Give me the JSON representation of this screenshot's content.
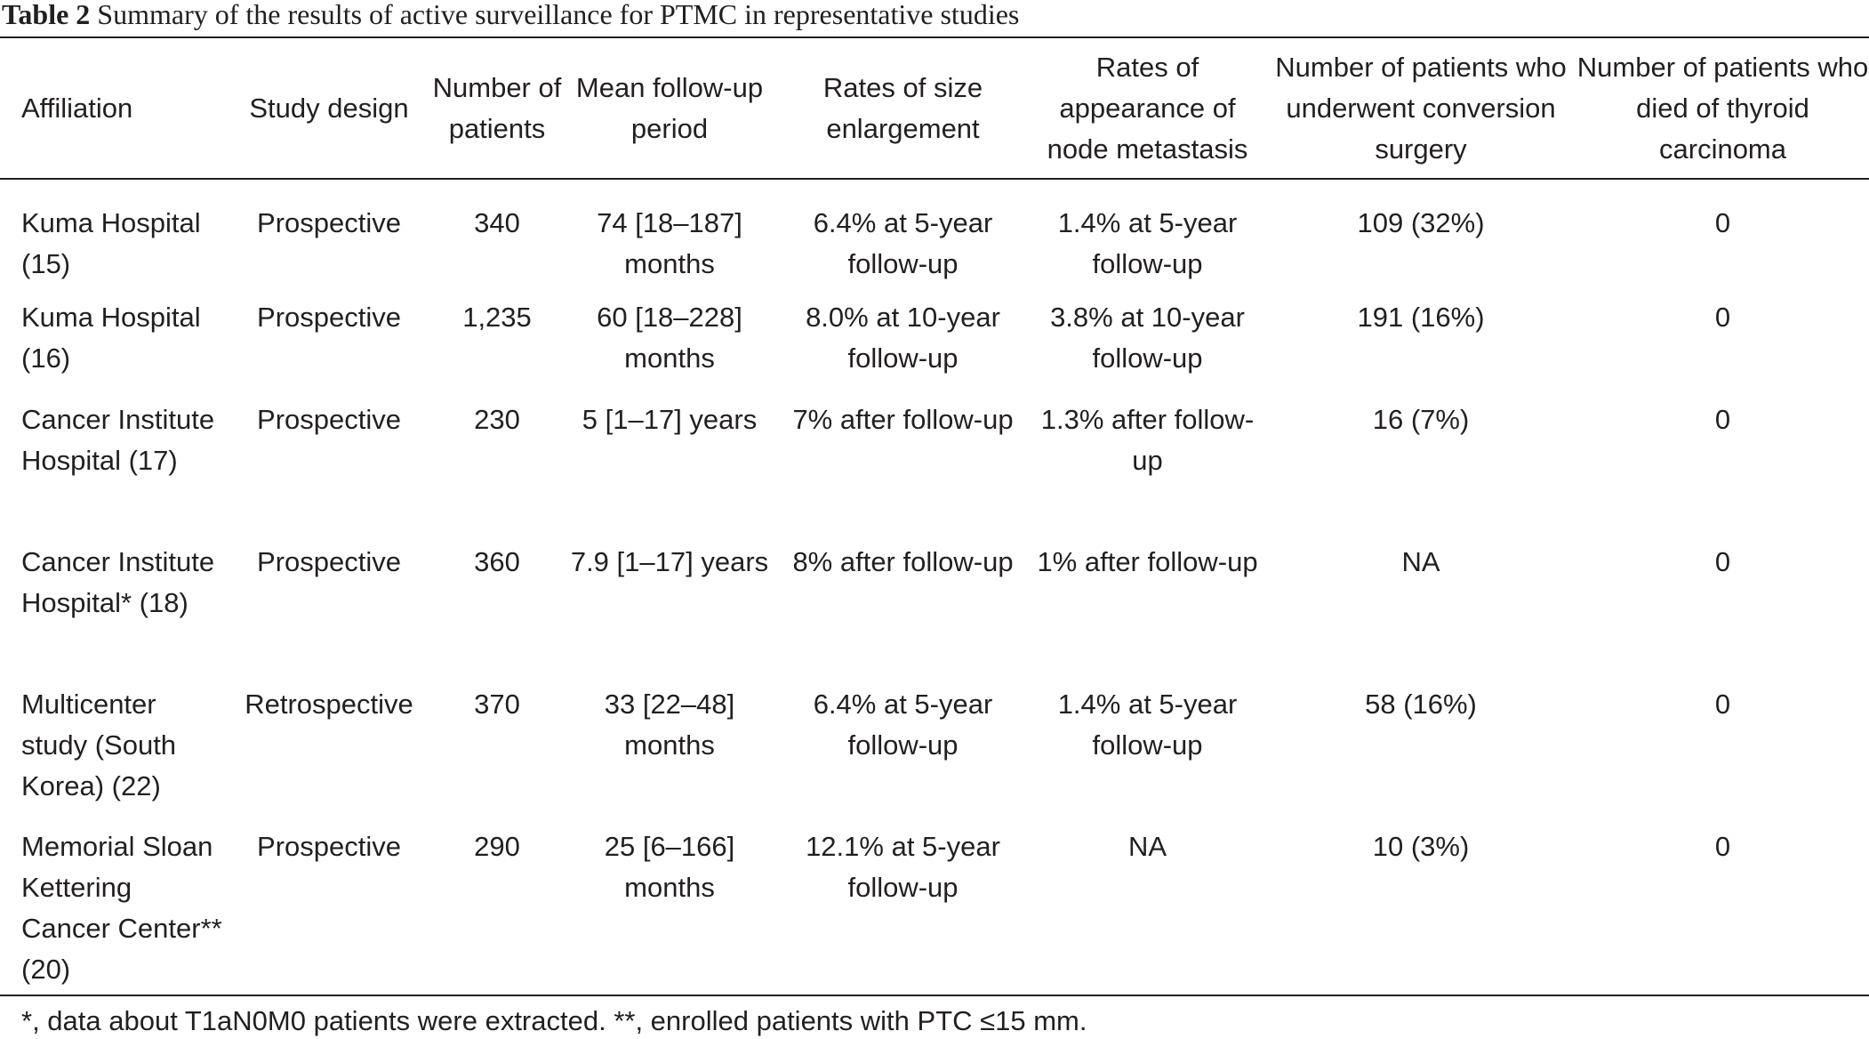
{
  "caption": {
    "label": "Table 2",
    "text": "Summary of the results of active surveillance for PTMC in representative studies"
  },
  "table": {
    "headers": [
      "Affiliation",
      "Study design",
      "Number of patients",
      "Mean follow-up period",
      "Rates of size enlargement",
      "Rates of appearance of node metastasis",
      "Number of patients who underwent conversion surgery",
      "Number of patients who died of thyroid carcinoma"
    ],
    "rows": [
      [
        "Kuma Hospital (15)",
        "Prospective",
        "340",
        "74 [18–187] months",
        "6.4% at 5-year follow-up",
        "1.4% at 5-year follow-up",
        "109 (32%)",
        "0"
      ],
      [
        "Kuma Hospital (16)",
        "Prospective",
        "1,235",
        "60 [18–228] months",
        "8.0% at 10-year follow-up",
        "3.8% at 10-year follow-up",
        "191 (16%)",
        "0"
      ],
      [
        "Cancer Institute Hospital (17)",
        "Prospective",
        "230",
        "5 [1–17] years",
        "7% after follow-up",
        "1.3% after follow-up",
        "16 (7%)",
        "0"
      ],
      [
        "Cancer Institute Hospital* (18)",
        "Prospective",
        "360",
        "7.9 [1–17] years",
        "8% after follow-up",
        "1% after follow-up",
        "NA",
        "0"
      ],
      [
        "Multicenter study (South Korea) (22)",
        "Retrospective",
        "370",
        "33 [22–48] months",
        "6.4% at 5-year follow-up",
        "1.4% at 5-year follow-up",
        "58 (16%)",
        "0"
      ],
      [
        "Memorial Sloan Kettering Cancer Center** (20)",
        "Prospective",
        "290",
        "25 [6–166] months",
        "12.1% at 5-year follow-up",
        "NA",
        "10 (3%)",
        "0"
      ]
    ]
  },
  "footnote": "*, data about T1aN0M0 patients were extracted. **, enrolled patients with PTC ≤15 mm."
}
